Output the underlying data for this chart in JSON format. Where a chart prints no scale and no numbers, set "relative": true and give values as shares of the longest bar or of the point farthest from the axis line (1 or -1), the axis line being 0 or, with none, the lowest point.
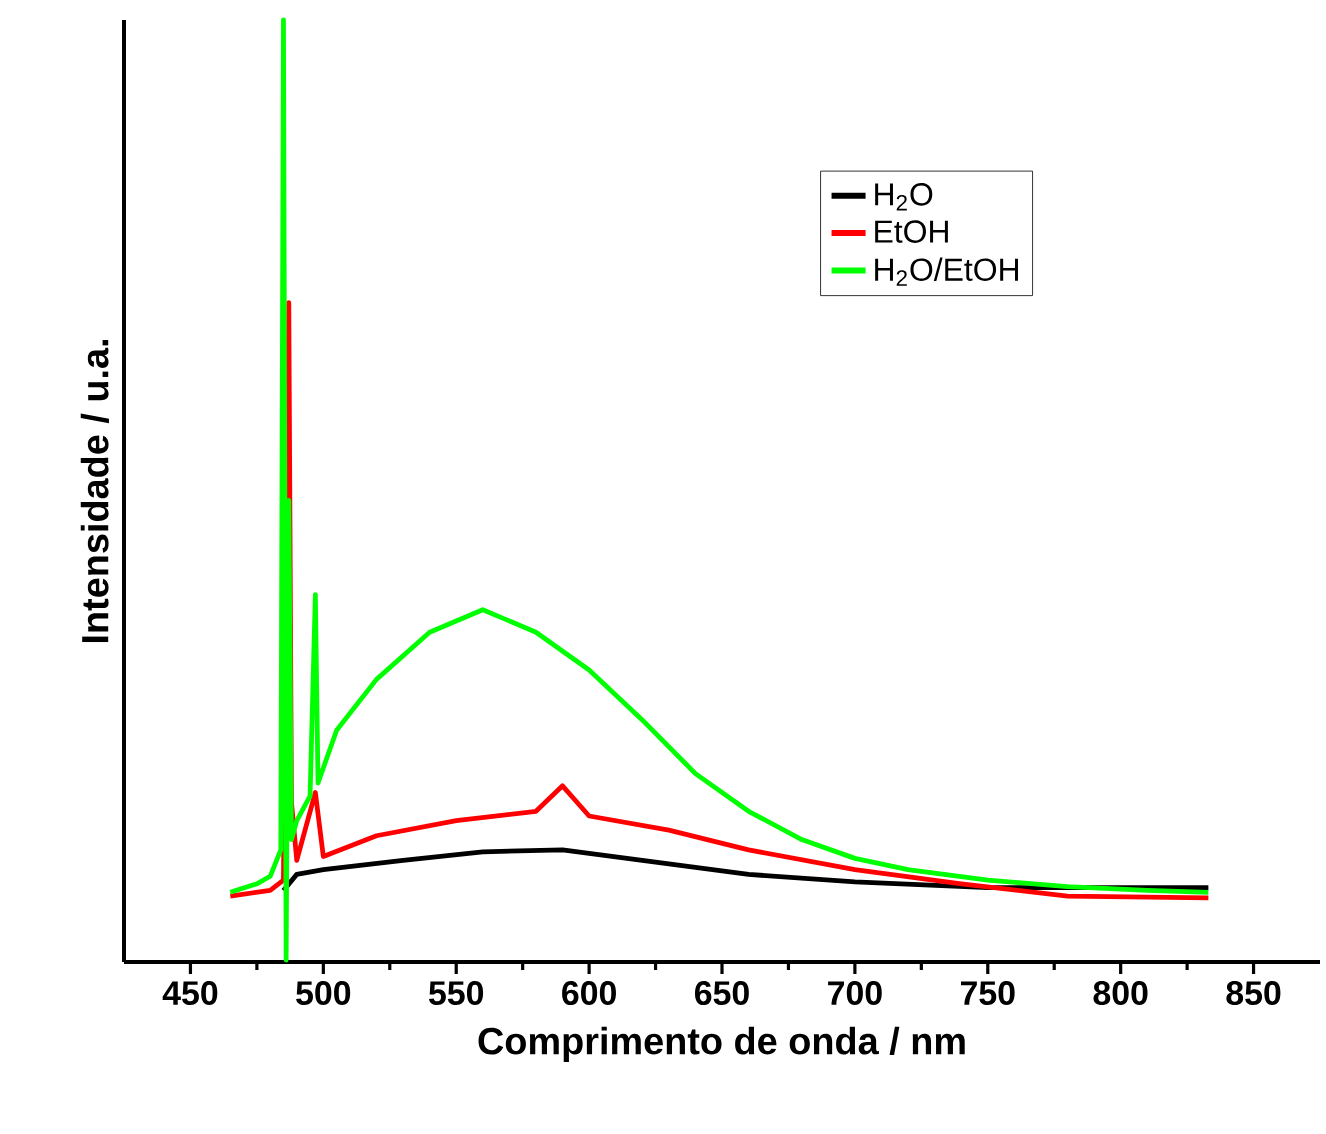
{
  "chart_data": {
    "type": "line",
    "relative": true,
    "xlabel": "Comprimento de onda / nm",
    "ylabel": "Intensidade / u.a.",
    "xlim": [
      425,
      875
    ],
    "xticks": [
      450,
      500,
      550,
      600,
      650,
      700,
      750,
      800,
      850
    ],
    "legend": "top right",
    "grid": false,
    "marker": "none",
    "line_style": "solid",
    "series": [
      {
        "name": "H$_{2}$O",
        "color": "#000000",
        "x": [
          485,
          490,
          500,
          530,
          560,
          590,
          620,
          660,
          700,
          750,
          800,
          833
        ],
        "values": [
          0.076,
          0.093,
          0.098,
          0.108,
          0.117,
          0.119,
          0.108,
          0.093,
          0.085,
          0.079,
          0.079,
          0.079
        ]
      },
      {
        "name": "EtOH",
        "color": "#ff0000",
        "x": [
          465,
          480,
          485,
          487,
          488,
          490,
          497,
          500,
          520,
          550,
          580,
          590,
          600,
          630,
          660,
          700,
          740,
          780,
          833
        ],
        "values": [
          0.07,
          0.076,
          0.087,
          0.7,
          0.17,
          0.108,
          0.18,
          0.112,
          0.134,
          0.15,
          0.16,
          0.187,
          0.155,
          0.14,
          0.119,
          0.098,
          0.083,
          0.07,
          0.068
        ]
      },
      {
        "name": "H$_{2}$O/EtOH",
        "color": "#00ff00",
        "x": [
          465,
          475,
          480,
          484,
          485,
          486,
          487,
          488,
          490,
          495,
          497,
          498,
          505,
          520,
          540,
          560,
          580,
          600,
          620,
          640,
          660,
          680,
          700,
          720,
          750,
          780,
          810,
          833
        ],
        "values": [
          0.074,
          0.083,
          0.091,
          0.119,
          1.0,
          0.002,
          0.49,
          0.13,
          0.15,
          0.176,
          0.39,
          0.19,
          0.246,
          0.3,
          0.35,
          0.374,
          0.35,
          0.31,
          0.257,
          0.2,
          0.16,
          0.13,
          0.11,
          0.098,
          0.087,
          0.08,
          0.076,
          0.074
        ]
      }
    ]
  }
}
